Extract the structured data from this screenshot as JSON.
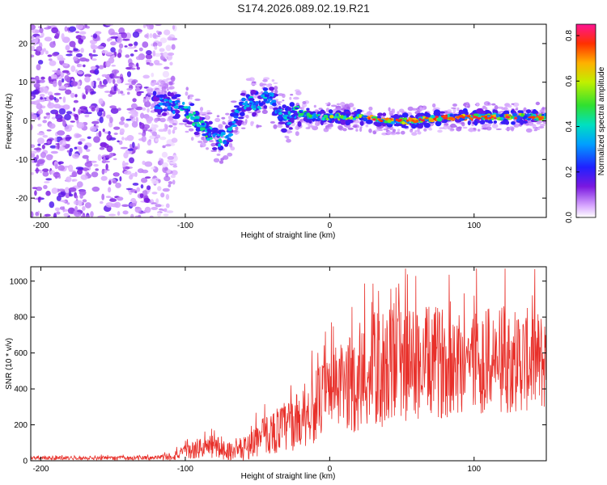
{
  "title": "S174.2026.089.02.19.R21",
  "chart_data": [
    {
      "type": "heatmap",
      "title": "S174.2026.089.02.19.R21",
      "xlabel": "Height of straight line (km)",
      "ylabel": "Frequency (Hz)",
      "xlim": [
        -207,
        150
      ],
      "ylim": [
        -25,
        25
      ],
      "xticks": [
        "-200",
        "-100",
        "0",
        "100"
      ],
      "xtick_values": [
        -200,
        -100,
        0,
        100
      ],
      "yticks": [
        "20",
        "10",
        "0",
        "-10",
        "-20"
      ],
      "ytick_values": [
        20,
        10,
        0,
        -10,
        -20
      ],
      "colorbar": {
        "label": "Normalized spectral amplitude",
        "range": [
          0.0,
          0.85
        ],
        "ticks": [
          "0.0",
          "0.2",
          "0.4",
          "0.6",
          "0.8"
        ],
        "tick_values": [
          0.0,
          0.2,
          0.4,
          0.6,
          0.8
        ]
      },
      "ridge": {
        "x": [
          -120,
          -110,
          -100,
          -95,
          -90,
          -85,
          -80,
          -75,
          -70,
          -65,
          -60,
          -55,
          -50,
          -45,
          -40,
          -35,
          -30,
          -25,
          -20,
          -10,
          0,
          20,
          40,
          60,
          80,
          100,
          120,
          140,
          150
        ],
        "freq": [
          5,
          4,
          3,
          1,
          -1,
          -3,
          -4,
          -5,
          -4,
          1,
          4,
          5,
          4,
          6,
          6,
          2,
          0,
          2,
          2,
          1,
          1,
          1,
          0,
          0,
          1,
          1,
          1,
          1,
          1
        ],
        "amplitude": [
          0.3,
          0.32,
          0.4,
          0.45,
          0.42,
          0.45,
          0.35,
          0.4,
          0.35,
          0.35,
          0.32,
          0.35,
          0.35,
          0.35,
          0.3,
          0.35,
          0.38,
          0.4,
          0.42,
          0.5,
          0.6,
          0.65,
          0.7,
          0.7,
          0.7,
          0.75,
          0.78,
          0.8,
          0.8
        ]
      },
      "noise_region_x": [
        -207,
        -115
      ]
    },
    {
      "type": "line",
      "xlabel": "Height of straight line (km)",
      "ylabel": "SNR (10 * v/v)",
      "xlim": [
        -207,
        150
      ],
      "ylim": [
        0,
        1080
      ],
      "xticks": [
        "-200",
        "-100",
        "0",
        "100"
      ],
      "xtick_values": [
        -200,
        -100,
        0,
        100
      ],
      "yticks": [
        "0",
        "200",
        "400",
        "600",
        "800",
        "1000"
      ],
      "ytick_values": [
        0,
        200,
        400,
        600,
        800,
        1000
      ],
      "series": [
        {
          "name": "SNR",
          "color": "#e8302a",
          "envelope_x": [
            -207,
            -120,
            -110,
            -100,
            -90,
            -80,
            -70,
            -60,
            -50,
            -40,
            -30,
            -20,
            -10,
            0,
            10,
            20,
            30,
            40,
            60,
            80,
            100,
            120,
            140,
            150
          ],
          "envelope_y": [
            15,
            15,
            25,
            45,
            70,
            80,
            55,
            60,
            120,
            160,
            190,
            230,
            300,
            390,
            420,
            440,
            500,
            520,
            540,
            550,
            560,
            560,
            560,
            550
          ],
          "spread": [
            10,
            12,
            25,
            40,
            60,
            70,
            50,
            60,
            100,
            120,
            150,
            160,
            200,
            220,
            250,
            300,
            330,
            330,
            320,
            310,
            300,
            300,
            290,
            280
          ],
          "peak_max": 1070
        }
      ]
    }
  ]
}
